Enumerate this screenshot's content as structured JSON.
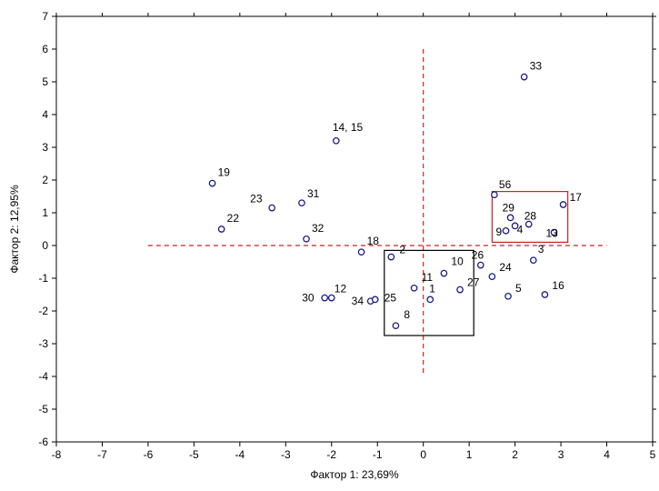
{
  "chart_data": {
    "type": "scatter",
    "xlabel": "Фактор 1: 23,69%",
    "ylabel": "Фактор 2: 12,95%",
    "xlim": [
      -8,
      5
    ],
    "ylim": [
      -6,
      7
    ],
    "xticks": [
      "-8",
      "-7",
      "-6",
      "-5",
      "-4",
      "-3",
      "-2",
      "-1",
      "0",
      "1",
      "2",
      "3",
      "4",
      "5"
    ],
    "yticks": [
      "-6",
      "-5",
      "-4",
      "-3",
      "-2",
      "-1",
      "0",
      "1",
      "2",
      "3",
      "4",
      "5",
      "6",
      "7"
    ],
    "grid": false,
    "points": [
      {
        "label": "33",
        "x": 2.2,
        "y": 5.15
      },
      {
        "label": "14, 15",
        "x": -1.9,
        "y": 3.2
      },
      {
        "label": "19",
        "x": -4.6,
        "y": 1.9
      },
      {
        "label": "23",
        "x": -3.3,
        "y": 1.15
      },
      {
        "label": "31",
        "x": -2.65,
        "y": 1.3
      },
      {
        "label": "22",
        "x": -4.4,
        "y": 0.5
      },
      {
        "label": "32",
        "x": -2.55,
        "y": 0.2
      },
      {
        "label": "18",
        "x": -1.35,
        "y": -0.2
      },
      {
        "label": "2",
        "x": -0.7,
        "y": -0.35
      },
      {
        "label": "56",
        "x": 1.55,
        "y": 1.55
      },
      {
        "label": "17",
        "x": 3.05,
        "y": 1.25
      },
      {
        "label": "29",
        "x": 1.9,
        "y": 0.85
      },
      {
        "label": "28",
        "x": 2.3,
        "y": 0.65
      },
      {
        "label": "9",
        "x": 1.8,
        "y": 0.45
      },
      {
        "label": "4",
        "x": 2.0,
        "y": 0.6
      },
      {
        "label": "13",
        "x": 2.85,
        "y": 0.4
      },
      {
        "label": "26",
        "x": 1.25,
        "y": -0.6
      },
      {
        "label": "3",
        "x": 2.4,
        "y": -0.45
      },
      {
        "label": "10",
        "x": 0.45,
        "y": -0.85
      },
      {
        "label": "24",
        "x": 1.5,
        "y": -0.95
      },
      {
        "label": "11",
        "x": -0.2,
        "y": -1.3
      },
      {
        "label": "27",
        "x": 0.8,
        "y": -1.35
      },
      {
        "label": "1",
        "x": 0.15,
        "y": -1.65
      },
      {
        "label": "5",
        "x": 1.85,
        "y": -1.55
      },
      {
        "label": "16",
        "x": 2.65,
        "y": -1.5
      },
      {
        "label": "30",
        "x": -2.15,
        "y": -1.6
      },
      {
        "label": "12",
        "x": -2.0,
        "y": -1.6
      },
      {
        "label": "34",
        "x": -1.15,
        "y": -1.7
      },
      {
        "label": "25",
        "x": -1.05,
        "y": -1.65
      },
      {
        "label": "8",
        "x": -0.6,
        "y": -2.45
      }
    ],
    "reference_lines": {
      "x": 0,
      "y": 0,
      "style": "dashed",
      "color": "#cc2222"
    },
    "highlight_boxes": [
      {
        "x0": 1.5,
        "x1": 3.15,
        "y0": 0.1,
        "y1": 1.65,
        "color": "#cc2222"
      },
      {
        "x0": -0.85,
        "x1": 1.1,
        "y0": -2.75,
        "y1": -0.15,
        "color": "#000000"
      }
    ],
    "colors": {
      "marker": "#1a1a8a",
      "reference": "#cc2222",
      "axis": "#000000"
    }
  }
}
